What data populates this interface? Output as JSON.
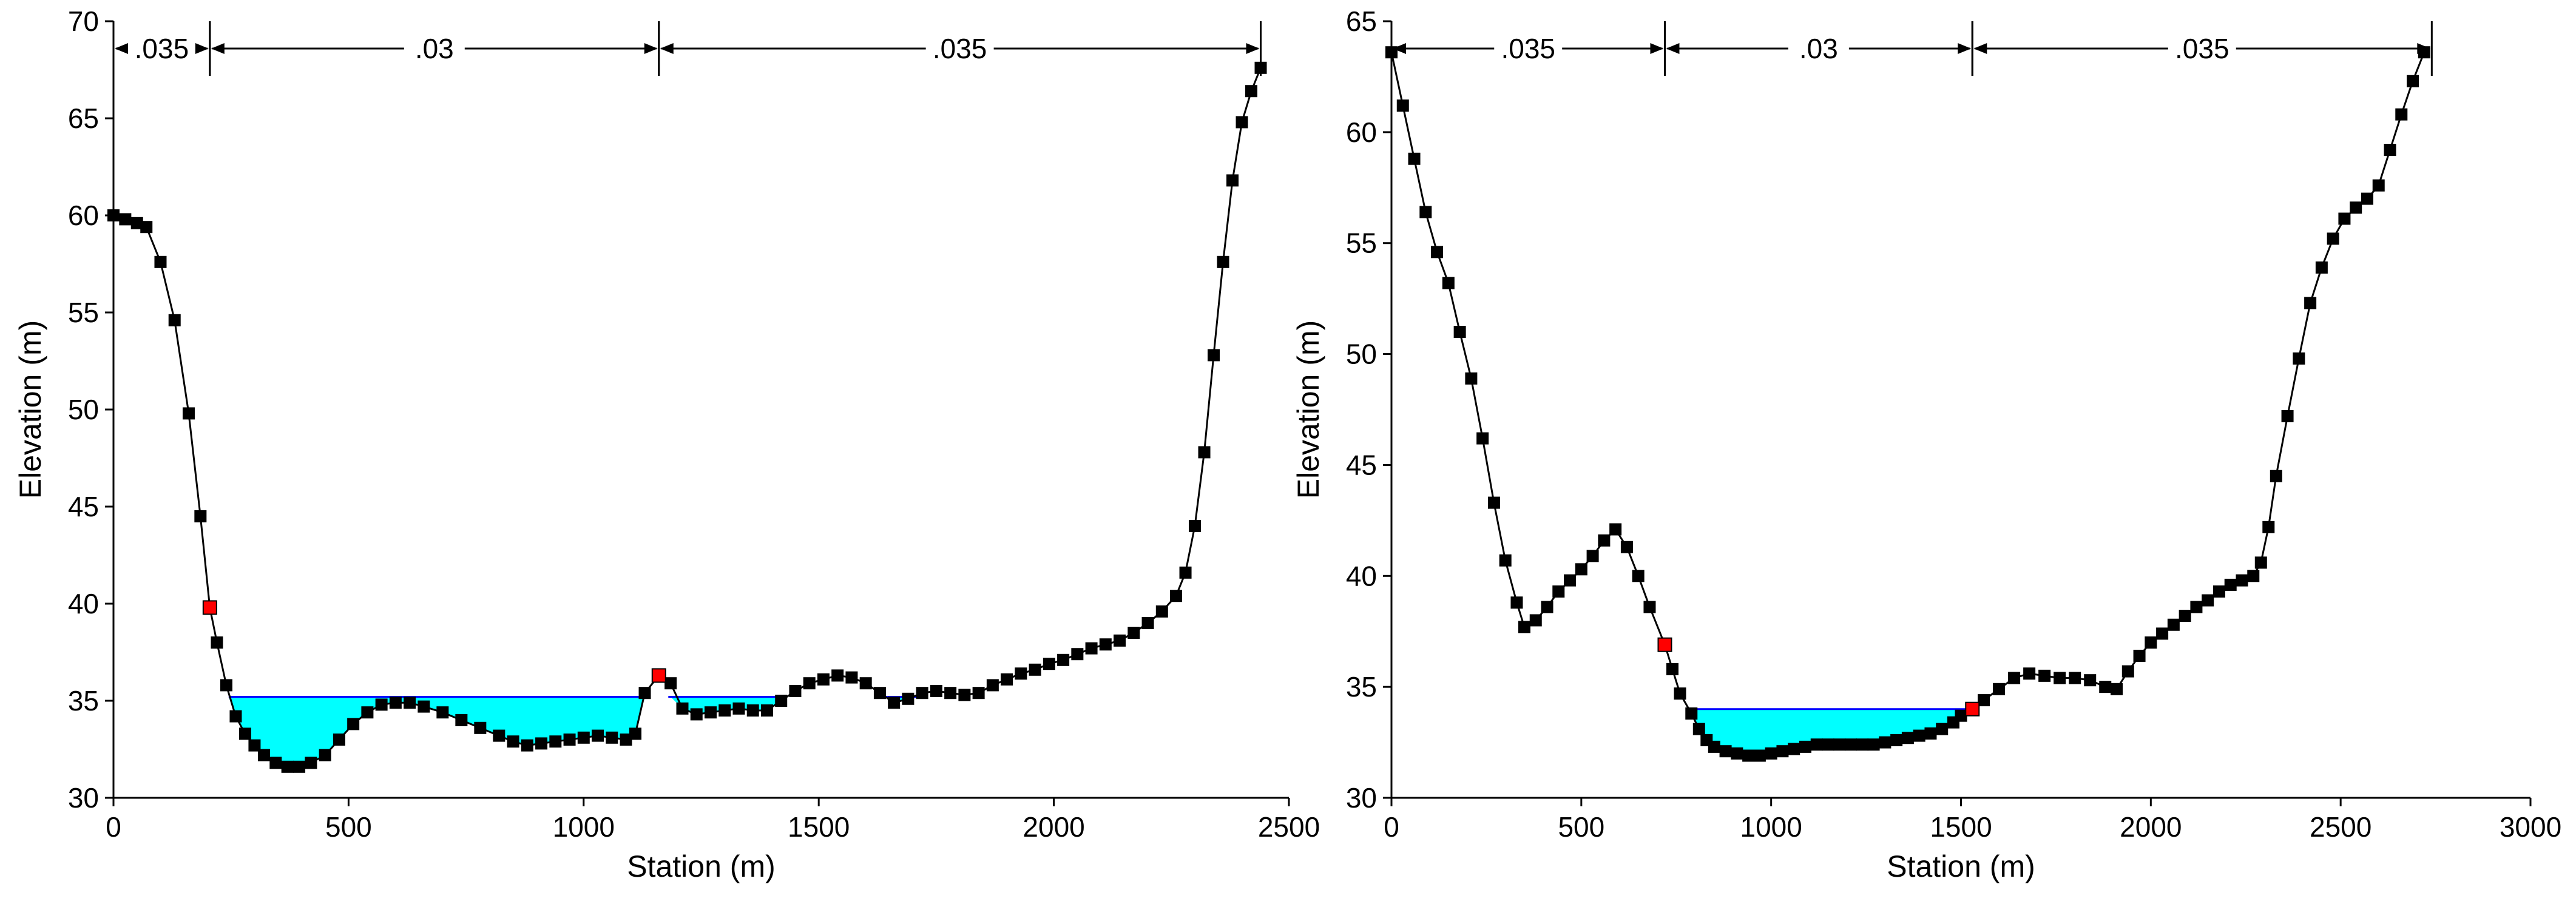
{
  "chart_data": [
    {
      "type": "line",
      "xlabel": "Station (m)",
      "ylabel": "Elevation (m)",
      "xlim": [
        0,
        2500
      ],
      "ylim": [
        30,
        70
      ],
      "xticks": [
        0,
        500,
        1000,
        1500,
        2000,
        2500
      ],
      "yticks": [
        30,
        35,
        40,
        45,
        50,
        55,
        60,
        65,
        70
      ],
      "xtick_labels": [
        "0",
        "500",
        "1000",
        "1500",
        "2000",
        "2500"
      ],
      "ytick_labels": [
        "30",
        "35",
        "40",
        "45",
        "50",
        "55",
        "60",
        "65",
        "70"
      ],
      "grid": false,
      "colors": {
        "ground": "#000000",
        "water": "#00ffff",
        "water_surface": "#0000ff",
        "bank_station": "#ff0000"
      },
      "water_surface_elevation": 35.2,
      "water_extents": [
        [
          245,
          1125
        ],
        [
          1180,
          1420
        ],
        [
          1640,
          1720
        ]
      ],
      "manning_n": [
        {
          "label": ".035",
          "from": 0,
          "to": 205
        },
        {
          "label": ".03",
          "from": 205,
          "to": 1160
        },
        {
          "label": ".035",
          "from": 1160,
          "to": 2440
        }
      ],
      "bank_stations": [
        {
          "station": 205,
          "elevation": 39.8
        },
        {
          "station": 1160,
          "elevation": 36.3
        }
      ],
      "profile": [
        [
          0,
          60.0
        ],
        [
          25,
          59.8
        ],
        [
          50,
          59.6
        ],
        [
          70,
          59.4
        ],
        [
          100,
          57.6
        ],
        [
          130,
          54.6
        ],
        [
          160,
          49.8
        ],
        [
          185,
          44.5
        ],
        [
          205,
          39.8
        ],
        [
          220,
          38.0
        ],
        [
          240,
          35.8
        ],
        [
          260,
          34.2
        ],
        [
          280,
          33.3
        ],
        [
          300,
          32.7
        ],
        [
          320,
          32.2
        ],
        [
          345,
          31.8
        ],
        [
          370,
          31.6
        ],
        [
          395,
          31.6
        ],
        [
          420,
          31.8
        ],
        [
          450,
          32.2
        ],
        [
          480,
          33.0
        ],
        [
          510,
          33.8
        ],
        [
          540,
          34.4
        ],
        [
          570,
          34.8
        ],
        [
          600,
          34.9
        ],
        [
          630,
          34.9
        ],
        [
          660,
          34.7
        ],
        [
          700,
          34.4
        ],
        [
          740,
          34.0
        ],
        [
          780,
          33.6
        ],
        [
          820,
          33.2
        ],
        [
          850,
          32.9
        ],
        [
          880,
          32.7
        ],
        [
          910,
          32.8
        ],
        [
          940,
          32.9
        ],
        [
          970,
          33.0
        ],
        [
          1000,
          33.1
        ],
        [
          1030,
          33.2
        ],
        [
          1060,
          33.1
        ],
        [
          1090,
          33.0
        ],
        [
          1110,
          33.3
        ],
        [
          1130,
          35.4
        ],
        [
          1160,
          36.3
        ],
        [
          1185,
          35.9
        ],
        [
          1210,
          34.6
        ],
        [
          1240,
          34.3
        ],
        [
          1270,
          34.4
        ],
        [
          1300,
          34.5
        ],
        [
          1330,
          34.6
        ],
        [
          1360,
          34.5
        ],
        [
          1390,
          34.5
        ],
        [
          1420,
          35.0
        ],
        [
          1450,
          35.5
        ],
        [
          1480,
          35.9
        ],
        [
          1510,
          36.1
        ],
        [
          1540,
          36.3
        ],
        [
          1570,
          36.2
        ],
        [
          1600,
          35.9
        ],
        [
          1630,
          35.4
        ],
        [
          1660,
          34.9
        ],
        [
          1690,
          35.1
        ],
        [
          1720,
          35.4
        ],
        [
          1750,
          35.5
        ],
        [
          1780,
          35.4
        ],
        [
          1810,
          35.3
        ],
        [
          1840,
          35.4
        ],
        [
          1870,
          35.8
        ],
        [
          1900,
          36.1
        ],
        [
          1930,
          36.4
        ],
        [
          1960,
          36.6
        ],
        [
          1990,
          36.9
        ],
        [
          2020,
          37.1
        ],
        [
          2050,
          37.4
        ],
        [
          2080,
          37.7
        ],
        [
          2110,
          37.9
        ],
        [
          2140,
          38.1
        ],
        [
          2170,
          38.5
        ],
        [
          2200,
          39.0
        ],
        [
          2230,
          39.6
        ],
        [
          2260,
          40.4
        ],
        [
          2280,
          41.6
        ],
        [
          2300,
          44.0
        ],
        [
          2320,
          47.8
        ],
        [
          2340,
          52.8
        ],
        [
          2360,
          57.6
        ],
        [
          2380,
          61.8
        ],
        [
          2400,
          64.8
        ],
        [
          2420,
          66.4
        ],
        [
          2440,
          67.6
        ]
      ]
    },
    {
      "type": "line",
      "xlabel": "Station (m)",
      "ylabel": "Elevation (m)",
      "xlim": [
        0,
        3000
      ],
      "ylim": [
        30,
        65
      ],
      "xticks": [
        0,
        500,
        1000,
        1500,
        2000,
        2500,
        3000
      ],
      "yticks": [
        30,
        35,
        40,
        45,
        50,
        55,
        60,
        65
      ],
      "xtick_labels": [
        "0",
        "500",
        "1000",
        "1500",
        "2000",
        "2500",
        "3000"
      ],
      "ytick_labels": [
        "30",
        "35",
        "40",
        "45",
        "50",
        "55",
        "60",
        "65"
      ],
      "grid": false,
      "colors": {
        "ground": "#000000",
        "water": "#00ffff",
        "water_surface": "#0000ff",
        "bank_station": "#ff0000"
      },
      "water_surface_elevation": 34.0,
      "water_extents": [
        [
          790,
          1530
        ]
      ],
      "manning_n": [
        {
          "label": ".035",
          "from": 0,
          "to": 720
        },
        {
          "label": ".03",
          "from": 720,
          "to": 1530
        },
        {
          "label": ".035",
          "from": 1530,
          "to": 2740
        }
      ],
      "bank_stations": [
        {
          "station": 720,
          "elevation": 36.9
        },
        {
          "station": 1530,
          "elevation": 34.0
        }
      ],
      "profile": [
        [
          0,
          63.6
        ],
        [
          30,
          61.2
        ],
        [
          60,
          58.8
        ],
        [
          90,
          56.4
        ],
        [
          120,
          54.6
        ],
        [
          150,
          53.2
        ],
        [
          180,
          51.0
        ],
        [
          210,
          48.9
        ],
        [
          240,
          46.2
        ],
        [
          270,
          43.3
        ],
        [
          300,
          40.7
        ],
        [
          330,
          38.8
        ],
        [
          350,
          37.7
        ],
        [
          380,
          38.0
        ],
        [
          410,
          38.6
        ],
        [
          440,
          39.3
        ],
        [
          470,
          39.8
        ],
        [
          500,
          40.3
        ],
        [
          530,
          40.9
        ],
        [
          560,
          41.6
        ],
        [
          590,
          42.1
        ],
        [
          620,
          41.3
        ],
        [
          650,
          40.0
        ],
        [
          680,
          38.6
        ],
        [
          720,
          36.9
        ],
        [
          740,
          35.8
        ],
        [
          760,
          34.7
        ],
        [
          790,
          33.8
        ],
        [
          810,
          33.1
        ],
        [
          830,
          32.6
        ],
        [
          850,
          32.3
        ],
        [
          880,
          32.1
        ],
        [
          910,
          32.0
        ],
        [
          940,
          31.9
        ],
        [
          970,
          31.9
        ],
        [
          1000,
          32.0
        ],
        [
          1030,
          32.1
        ],
        [
          1060,
          32.2
        ],
        [
          1090,
          32.3
        ],
        [
          1120,
          32.4
        ],
        [
          1150,
          32.4
        ],
        [
          1180,
          32.4
        ],
        [
          1210,
          32.4
        ],
        [
          1240,
          32.4
        ],
        [
          1270,
          32.4
        ],
        [
          1300,
          32.5
        ],
        [
          1330,
          32.6
        ],
        [
          1360,
          32.7
        ],
        [
          1390,
          32.8
        ],
        [
          1420,
          32.9
        ],
        [
          1450,
          33.1
        ],
        [
          1480,
          33.4
        ],
        [
          1500,
          33.7
        ],
        [
          1530,
          34.0
        ],
        [
          1560,
          34.4
        ],
        [
          1600,
          34.9
        ],
        [
          1640,
          35.4
        ],
        [
          1680,
          35.6
        ],
        [
          1720,
          35.5
        ],
        [
          1760,
          35.4
        ],
        [
          1800,
          35.4
        ],
        [
          1840,
          35.3
        ],
        [
          1880,
          35.0
        ],
        [
          1910,
          34.9
        ],
        [
          1940,
          35.7
        ],
        [
          1970,
          36.4
        ],
        [
          2000,
          37.0
        ],
        [
          2030,
          37.4
        ],
        [
          2060,
          37.8
        ],
        [
          2090,
          38.2
        ],
        [
          2120,
          38.6
        ],
        [
          2150,
          38.9
        ],
        [
          2180,
          39.3
        ],
        [
          2210,
          39.6
        ],
        [
          2240,
          39.8
        ],
        [
          2270,
          40.0
        ],
        [
          2290,
          40.6
        ],
        [
          2310,
          42.2
        ],
        [
          2330,
          44.5
        ],
        [
          2360,
          47.2
        ],
        [
          2390,
          49.8
        ],
        [
          2420,
          52.3
        ],
        [
          2450,
          53.9
        ],
        [
          2480,
          55.2
        ],
        [
          2510,
          56.1
        ],
        [
          2540,
          56.6
        ],
        [
          2570,
          57.0
        ],
        [
          2600,
          57.6
        ],
        [
          2630,
          59.2
        ],
        [
          2660,
          60.8
        ],
        [
          2690,
          62.3
        ],
        [
          2720,
          63.6
        ]
      ]
    }
  ]
}
